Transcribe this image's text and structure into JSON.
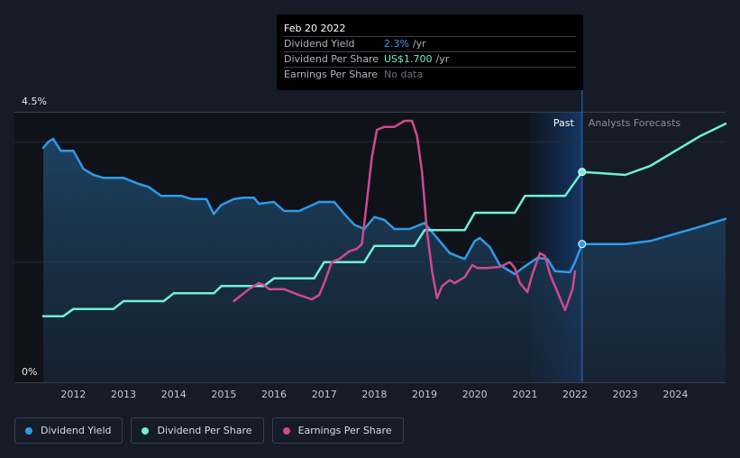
{
  "tooltip": {
    "date": "Feb 20 2022",
    "rows": [
      {
        "label": "Dividend Yield",
        "value": "2.3%",
        "unit": "/yr"
      },
      {
        "label": "Dividend Per Share",
        "value": "US$1.700",
        "unit": "/yr"
      },
      {
        "label": "Earnings Per Share",
        "value": "No data",
        "unit": ""
      }
    ]
  },
  "regions": {
    "past": "Past",
    "forecast": "Analysts Forecasts"
  },
  "legend": [
    {
      "label": "Dividend Yield",
      "color": "#2e9bea"
    },
    {
      "label": "Dividend Per Share",
      "color": "#6ff1d3"
    },
    {
      "label": "Earnings Per Share",
      "color": "#d0498f"
    }
  ],
  "chart_data": {
    "type": "line",
    "xlim": [
      2011.4,
      2025.0
    ],
    "ylim": [
      0,
      4.5
    ],
    "y_ticks": [
      {
        "value": 4.5,
        "label": "4.5%"
      },
      {
        "value": 0,
        "label": "0%"
      }
    ],
    "x_ticks": [
      2012,
      2013,
      2014,
      2015,
      2016,
      2017,
      2018,
      2019,
      2020,
      2021,
      2022,
      2023,
      2024
    ],
    "past_end": 2022.14,
    "highlight_start": 2021.1,
    "gridlines": [
      4.0,
      2.0
    ],
    "series": [
      {
        "name": "Dividend Yield",
        "color": "#2e9bea",
        "fill": true,
        "x": [
          2011.4,
          2011.5,
          2011.6,
          2011.75,
          2012.0,
          2012.1,
          2012.2,
          2012.4,
          2012.6,
          2013.0,
          2013.3,
          2013.5,
          2013.75,
          2014.15,
          2014.35,
          2014.5,
          2014.65,
          2014.8,
          2014.95,
          2015.2,
          2015.4,
          2015.6,
          2015.7,
          2016.0,
          2016.2,
          2016.5,
          2016.9,
          2017.2,
          2017.4,
          2017.6,
          2017.8,
          2018.0,
          2018.2,
          2018.4,
          2018.7,
          2019.0,
          2019.2,
          2019.5,
          2019.8,
          2020.0,
          2020.1,
          2020.3,
          2020.5,
          2020.8,
          2020.95,
          2021.25,
          2021.45,
          2021.6,
          2021.9,
          2022.0,
          2022.14,
          2022.5,
          2023.0,
          2023.5,
          2024.0,
          2024.5,
          2025.0
        ],
        "values": [
          3.9,
          4.0,
          4.05,
          3.85,
          3.85,
          3.7,
          3.55,
          3.45,
          3.4,
          3.4,
          3.3,
          3.25,
          3.1,
          3.1,
          3.05,
          3.05,
          3.05,
          2.8,
          2.95,
          3.05,
          3.07,
          3.07,
          2.97,
          3.0,
          2.85,
          2.85,
          3.0,
          3.0,
          2.8,
          2.62,
          2.55,
          2.75,
          2.7,
          2.55,
          2.55,
          2.65,
          2.45,
          2.15,
          2.05,
          2.35,
          2.4,
          2.25,
          1.95,
          1.8,
          1.9,
          2.07,
          2.05,
          1.85,
          1.83,
          2.0,
          2.3,
          2.3,
          2.3,
          2.35,
          2.47,
          2.59,
          2.72
        ]
      },
      {
        "name": "Dividend Per Share",
        "color": "#6ff1d3",
        "fill": false,
        "x": [
          2011.4,
          2011.8,
          2012.0,
          2012.8,
          2013.0,
          2013.8,
          2014.0,
          2014.8,
          2014.95,
          2015.8,
          2016.0,
          2016.8,
          2017.0,
          2017.8,
          2018.0,
          2018.8,
          2019.0,
          2019.8,
          2020.0,
          2020.8,
          2021.0,
          2021.8,
          2022.14,
          2022.5,
          2023.0,
          2023.5,
          2024.0,
          2024.5,
          2025.0
        ],
        "values": [
          1.1,
          1.1,
          1.22,
          1.22,
          1.35,
          1.35,
          1.48,
          1.48,
          1.6,
          1.6,
          1.73,
          1.73,
          2.0,
          2.0,
          2.27,
          2.27,
          2.53,
          2.53,
          2.82,
          2.82,
          3.1,
          3.1,
          3.5,
          3.48,
          3.45,
          3.6,
          3.85,
          4.1,
          4.3
        ]
      },
      {
        "name": "Earnings Per Share",
        "color": "#d0498f",
        "fill": false,
        "x": [
          2015.2,
          2015.5,
          2015.7,
          2015.8,
          2015.9,
          2016.2,
          2016.5,
          2016.75,
          2016.9,
          2017.0,
          2017.15,
          2017.3,
          2017.5,
          2017.65,
          2017.75,
          2017.85,
          2017.95,
          2018.05,
          2018.2,
          2018.4,
          2018.6,
          2018.75,
          2018.85,
          2018.95,
          2019.05,
          2019.15,
          2019.25,
          2019.35,
          2019.5,
          2019.6,
          2019.8,
          2019.95,
          2020.05,
          2020.25,
          2020.5,
          2020.7,
          2020.8,
          2020.9,
          2021.05,
          2021.15,
          2021.3,
          2021.4,
          2021.5,
          2021.65,
          2021.8,
          2021.95,
          2022.0
        ],
        "values": [
          1.35,
          1.55,
          1.65,
          1.62,
          1.55,
          1.55,
          1.45,
          1.38,
          1.45,
          1.65,
          2.0,
          2.05,
          2.18,
          2.22,
          2.3,
          3.0,
          3.75,
          4.2,
          4.25,
          4.25,
          4.35,
          4.35,
          4.1,
          3.5,
          2.5,
          1.85,
          1.4,
          1.6,
          1.7,
          1.65,
          1.75,
          1.95,
          1.9,
          1.9,
          1.92,
          2.0,
          1.9,
          1.65,
          1.5,
          1.8,
          2.15,
          2.1,
          1.8,
          1.5,
          1.2,
          1.55,
          1.85
        ]
      }
    ],
    "markers": [
      {
        "series": "Dividend Yield",
        "x": 2022.14,
        "y": 2.3
      },
      {
        "series": "Dividend Per Share",
        "x": 2022.14,
        "y": 3.5
      }
    ]
  }
}
